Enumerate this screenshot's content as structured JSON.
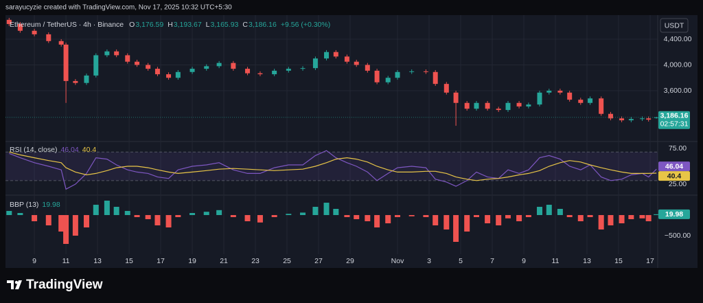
{
  "header": {
    "credit": "sarayucyzie created with TradingView.com, Nov 17, 2025 10:32 UTC+5:30"
  },
  "footer": {
    "brand": "TradingView"
  },
  "chart_data": [
    {
      "type": "candlestick",
      "title": "Ethereum / TetherUS · 4h · Binance",
      "ohlc": [
        {
          "label": "O",
          "value": "3,176.59"
        },
        {
          "label": "H",
          "value": "3,193.67"
        },
        {
          "label": "L",
          "value": "3,165.93"
        },
        {
          "label": "C",
          "value": "3,186.16"
        }
      ],
      "change": "+9.56 (+0.30%)",
      "currency": "USDT",
      "close_label": "3,186.16",
      "countdown": "02:57:31",
      "up_color": "#26a69a",
      "down_color": "#ef5350",
      "x": [
        7.4,
        8.1,
        9.0,
        9.9,
        10.7,
        11.0,
        11.6,
        12.3,
        12.9,
        13.6,
        14.2,
        14.9,
        15.5,
        16.2,
        16.8,
        17.5,
        18.1,
        19.0,
        19.9,
        20.7,
        21.6,
        22.5,
        23.3,
        24.2,
        25.1,
        26.0,
        26.8,
        27.5,
        28.1,
        28.8,
        29.4,
        30.1,
        30.7,
        31.4,
        32.0,
        32.9,
        33.8,
        34.4,
        35.1,
        35.7,
        36.4,
        37.0,
        37.7,
        38.4,
        39.0,
        39.7,
        40.3,
        41.0,
        41.6,
        42.3,
        42.9,
        43.6,
        44.2,
        44.9,
        45.5,
        46.2,
        46.8,
        47.5,
        47.9,
        48.4
      ],
      "open": [
        4700,
        4635,
        4530,
        4475,
        4370,
        4315,
        3750,
        3720,
        3835,
        4150,
        4210,
        4150,
        4050,
        4000,
        3940,
        3855,
        3800,
        3890,
        3940,
        3980,
        4030,
        3940,
        3870,
        3855,
        3910,
        3940,
        3950,
        4100,
        4200,
        4130,
        4050,
        4000,
        3910,
        3730,
        3800,
        3890,
        3900,
        3890,
        3705,
        3570,
        3410,
        3320,
        3410,
        3320,
        3300,
        3410,
        3355,
        3385,
        3570,
        3600,
        3570,
        3460,
        3410,
        3480,
        3240,
        3170,
        3140,
        3160,
        3170,
        3176.59
      ],
      "high": [
        4730,
        4665,
        4560,
        4505,
        4400,
        4345,
        3780,
        3865,
        4180,
        4240,
        4240,
        4180,
        4080,
        4030,
        3970,
        3885,
        3920,
        3970,
        4010,
        4060,
        4060,
        3970,
        3900,
        3940,
        3970,
        3980,
        4130,
        4230,
        4230,
        4160,
        4080,
        4030,
        3940,
        3830,
        3920,
        3930,
        3930,
        3920,
        3735,
        3600,
        3440,
        3440,
        3440,
        3350,
        3440,
        3440,
        3415,
        3600,
        3630,
        3630,
        3600,
        3490,
        3510,
        3510,
        3270,
        3200,
        3190,
        3200,
        3200,
        3193.67
      ],
      "low": [
        4605,
        4500,
        4445,
        4340,
        4285,
        3410,
        3690,
        3690,
        3805,
        4120,
        4120,
        4020,
        3970,
        3910,
        3825,
        3770,
        3770,
        3860,
        3910,
        3950,
        3910,
        3840,
        3825,
        3825,
        3880,
        3910,
        3920,
        4070,
        4100,
        4020,
        3970,
        3880,
        3700,
        3700,
        3770,
        3860,
        3860,
        3675,
        3540,
        3055,
        3290,
        3290,
        3290,
        3270,
        3270,
        3325,
        3325,
        3355,
        3540,
        3540,
        3430,
        3380,
        3380,
        3210,
        3140,
        3110,
        3110,
        3130,
        3120,
        3165.93
      ],
      "close": [
        4635,
        4530,
        4475,
        4370,
        4315,
        3750,
        3720,
        3835,
        4150,
        4210,
        4150,
        4050,
        4000,
        3940,
        3855,
        3800,
        3890,
        3940,
        3980,
        4030,
        3940,
        3870,
        3855,
        3910,
        3940,
        3950,
        4100,
        4200,
        4130,
        4050,
        4000,
        3910,
        3730,
        3800,
        3890,
        3900,
        3890,
        3705,
        3570,
        3410,
        3320,
        3410,
        3320,
        3300,
        3410,
        3355,
        3385,
        3570,
        3600,
        3570,
        3460,
        3410,
        3480,
        3240,
        3170,
        3140,
        3160,
        3170,
        3150,
        3186.16
      ],
      "xlim": [
        7.17,
        48.48
      ],
      "xticks": [
        9,
        11,
        13,
        15,
        17,
        19,
        21,
        23,
        25,
        27,
        29,
        {
          "value": 32,
          "label": "Nov"
        },
        {
          "value": 34,
          "label": "3"
        },
        {
          "value": 36,
          "label": "5"
        },
        {
          "value": 38,
          "label": "7"
        },
        {
          "value": 40,
          "label": "9"
        },
        {
          "value": 42,
          "label": "11"
        },
        {
          "value": 44,
          "label": "13"
        },
        {
          "value": 46,
          "label": "15"
        },
        {
          "value": 48,
          "label": "17"
        }
      ],
      "ylim": [
        2821,
        4773
      ],
      "yticks": [
        {
          "value": 3600,
          "label": "3,600.00"
        },
        {
          "value": 4000,
          "label": "4,000.00"
        },
        {
          "value": 4400,
          "label": "4,400.00"
        }
      ],
      "grid": true
    },
    {
      "type": "line",
      "title": "RSI (14, close)",
      "bands": [
        70,
        30
      ],
      "band_color": "#7e57c2",
      "series": [
        {
          "color": "#7e57c2",
          "values": [
            68,
            62,
            55,
            50,
            45,
            18,
            25,
            40,
            62,
            60,
            52,
            45,
            42,
            40,
            35,
            33,
            45,
            50,
            52,
            55,
            45,
            40,
            40,
            48,
            52,
            52,
            65,
            72,
            62,
            55,
            50,
            42,
            30,
            40,
            48,
            50,
            48,
            32,
            28,
            22,
            30,
            42,
            35,
            33,
            45,
            40,
            45,
            62,
            65,
            60,
            50,
            45,
            52,
            35,
            30,
            32,
            38,
            40,
            35,
            46.04
          ]
        },
        {
          "color": "#e8c547",
          "values": [
            70,
            66,
            62,
            58,
            55,
            48,
            42,
            38,
            40,
            44,
            48,
            50,
            50,
            48,
            45,
            42,
            40,
            42,
            44,
            46,
            47,
            46,
            45,
            44,
            45,
            46,
            50,
            55,
            60,
            62,
            60,
            56,
            50,
            45,
            42,
            42,
            43,
            43,
            40,
            35,
            32,
            30,
            32,
            33,
            35,
            38,
            40,
            44,
            50,
            55,
            58,
            56,
            52,
            48,
            45,
            42,
            40,
            40,
            40,
            40.4
          ]
        }
      ],
      "ylim": [
        10.6,
        83.7
      ],
      "yticks": [
        {
          "value": 25,
          "label": "25.00"
        },
        {
          "value": 75,
          "label": "75.00"
        }
      ]
    },
    {
      "type": "bar",
      "title": "BBP (13)",
      "up_color": "#26a69a",
      "down_color": "#ef5350",
      "values": [
        100,
        50,
        -150,
        -250,
        -400,
        -700,
        -500,
        -300,
        250,
        350,
        200,
        100,
        -50,
        -100,
        -250,
        -300,
        -50,
        50,
        80,
        120,
        -50,
        -150,
        -180,
        -50,
        30,
        60,
        200,
        300,
        150,
        -50,
        -100,
        -150,
        -300,
        -200,
        -50,
        -30,
        -50,
        -250,
        -350,
        -650,
        -400,
        -50,
        -200,
        -250,
        -80,
        -150,
        -50,
        200,
        250,
        150,
        -50,
        -150,
        -50,
        -350,
        -250,
        -200,
        -100,
        -80,
        -150,
        19.98
      ],
      "ylim": [
        -950,
        467
      ],
      "yticks": [
        {
          "value": -500,
          "label": "−500.00"
        }
      ]
    }
  ]
}
